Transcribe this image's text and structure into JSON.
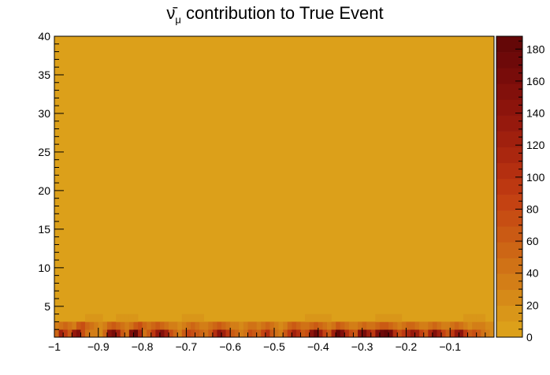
{
  "chart_data": {
    "type": "heatmap",
    "title": {
      "symbol": "ν̄",
      "subscript": "μ",
      "text": " contribution to True Event"
    },
    "xlabel": "",
    "ylabel": "",
    "xlim": [
      -1.0,
      0.0
    ],
    "ylim": [
      1,
      40
    ],
    "x_ticks": [
      {
        "value": -1.0,
        "label": "−1"
      },
      {
        "value": -0.9,
        "label": "−0.9"
      },
      {
        "value": -0.8,
        "label": "−0.8"
      },
      {
        "value": -0.7,
        "label": "−0.7"
      },
      {
        "value": -0.6,
        "label": "−0.6"
      },
      {
        "value": -0.5,
        "label": "−0.5"
      },
      {
        "value": -0.4,
        "label": "−0.4"
      },
      {
        "value": -0.3,
        "label": "−0.3"
      },
      {
        "value": -0.2,
        "label": "−0.2"
      },
      {
        "value": -0.1,
        "label": "−0.1"
      }
    ],
    "y_ticks": [
      5,
      10,
      15,
      20,
      25,
      30,
      35,
      40
    ],
    "colorbar": {
      "range": [
        0,
        188
      ],
      "ticks": [
        0,
        20,
        40,
        60,
        80,
        100,
        120,
        140,
        160,
        180
      ]
    },
    "background_value": 0,
    "x_bins": 100,
    "y_bin_width": 1,
    "rows": [
      {
        "y_low": 1,
        "y_high": 2,
        "values": [
          55,
          120,
          90,
          60,
          130,
          150,
          70,
          40,
          35,
          30,
          25,
          50,
          140,
          160,
          120,
          60,
          40,
          150,
          180,
          110,
          40,
          60,
          90,
          130,
          150,
          120,
          70,
          50,
          30,
          60,
          80,
          70,
          60,
          50,
          40,
          60,
          100,
          140,
          120,
          90,
          60,
          50,
          30,
          40,
          70,
          60,
          50,
          80,
          100,
          60,
          40,
          30,
          60,
          90,
          120,
          100,
          60,
          70,
          140,
          170,
          120,
          80,
          60,
          120,
          180,
          150,
          100,
          70,
          60,
          140,
          160,
          120,
          90,
          150,
          170,
          180,
          160,
          100,
          70,
          90,
          110,
          130,
          120,
          80,
          60,
          110,
          150,
          120,
          80,
          60,
          90,
          130,
          140,
          90,
          60,
          70,
          60,
          40,
          30,
          25
        ]
      },
      {
        "y_low": 2,
        "y_high": 3,
        "values": [
          30,
          40,
          50,
          40,
          30,
          60,
          70,
          50,
          40,
          30,
          25,
          30,
          50,
          60,
          50,
          40,
          30,
          40,
          60,
          70,
          50,
          40,
          50,
          60,
          50,
          40,
          30,
          30,
          25,
          30,
          40,
          50,
          40,
          30,
          30,
          40,
          50,
          60,
          50,
          40,
          30,
          30,
          25,
          30,
          40,
          40,
          30,
          40,
          50,
          40,
          30,
          25,
          30,
          50,
          60,
          50,
          40,
          40,
          50,
          60,
          50,
          40,
          35,
          40,
          60,
          50,
          40,
          30,
          30,
          40,
          50,
          40,
          40,
          50,
          60,
          60,
          50,
          40,
          30,
          40,
          50,
          50,
          40,
          30,
          30,
          40,
          50,
          40,
          30,
          30,
          40,
          50,
          40,
          30,
          25,
          30,
          35,
          30,
          25,
          20
        ]
      },
      {
        "y_low": 3,
        "y_high": 4,
        "values": [
          0,
          0,
          0,
          0,
          0,
          0,
          0,
          12,
          12,
          12,
          12,
          0,
          0,
          0,
          12,
          12,
          12,
          12,
          12,
          0,
          0,
          0,
          0,
          0,
          0,
          0,
          0,
          0,
          0,
          12,
          12,
          12,
          12,
          12,
          0,
          0,
          0,
          0,
          0,
          0,
          0,
          0,
          0,
          0,
          0,
          0,
          0,
          0,
          0,
          0,
          0,
          0,
          0,
          0,
          0,
          0,
          0,
          12,
          12,
          12,
          12,
          12,
          12,
          0,
          0,
          0,
          0,
          0,
          0,
          0,
          0,
          0,
          0,
          12,
          12,
          12,
          12,
          12,
          12,
          0,
          0,
          0,
          0,
          0,
          0,
          0,
          0,
          0,
          0,
          0,
          0,
          0,
          0,
          12,
          12,
          12,
          12,
          12,
          0,
          0
        ]
      },
      {
        "y_low": 4,
        "y_high": 5,
        "values": [
          0,
          0,
          0,
          0,
          0,
          0,
          0,
          0,
          0,
          0,
          0,
          0,
          0,
          0,
          0,
          0,
          0,
          0,
          0,
          0,
          0,
          0,
          0,
          0,
          0,
          0,
          0,
          0,
          0,
          0,
          0,
          0,
          0,
          0,
          0,
          0,
          0,
          0,
          0,
          0,
          0,
          0,
          0,
          0,
          0,
          0,
          0,
          0,
          0,
          0,
          0,
          0,
          0,
          0,
          0,
          0,
          0,
          0,
          0,
          0,
          0,
          0,
          0,
          0,
          0,
          0,
          0,
          0,
          0,
          0,
          0,
          0,
          0,
          0,
          0,
          0,
          0,
          0,
          0,
          0,
          0,
          0,
          0,
          0,
          0,
          0,
          0,
          0,
          0,
          0,
          0,
          0,
          0,
          0,
          0,
          0,
          0,
          0,
          0,
          0
        ]
      }
    ]
  }
}
